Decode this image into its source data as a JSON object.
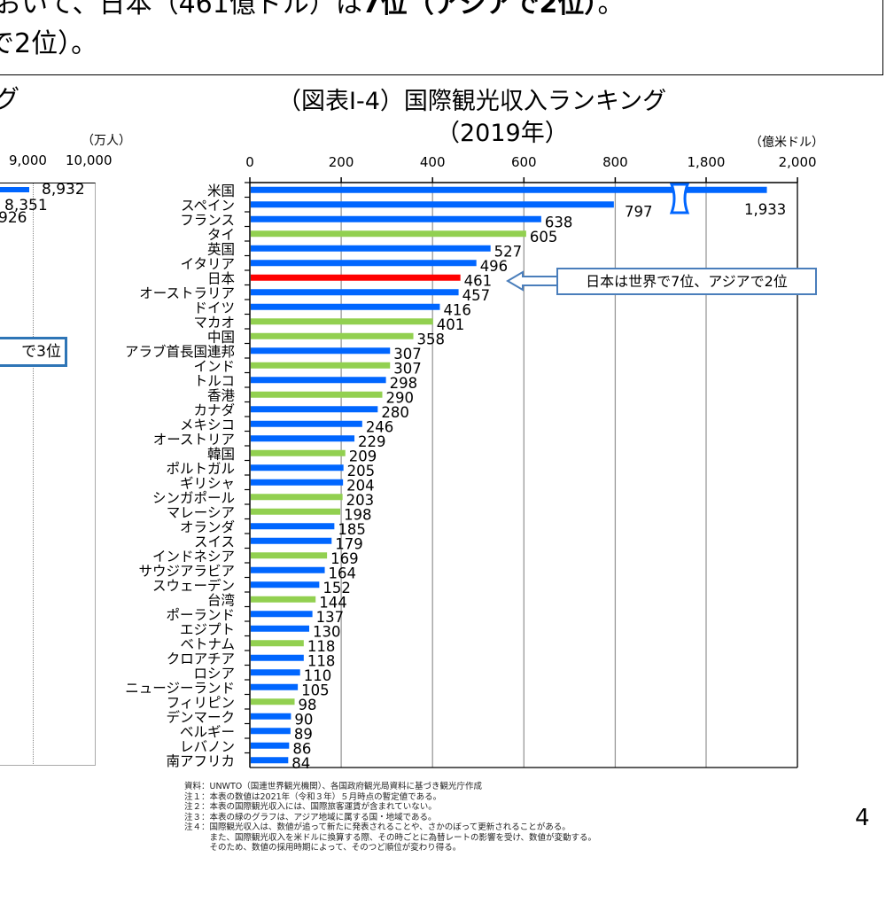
{
  "top_text": {
    "line1_normal": "おいて、日本（461億ドル）は",
    "line1_bold": "7位（アジアで2位）",
    "line1_end": "。",
    "line2": "で2位）。"
  },
  "left_chart_fragment": {
    "title_fragment": "グ",
    "unit": "（万人）",
    "ticks": [
      "9,000",
      "10,000"
    ],
    "labels": [
      "8,932",
      "8,351",
      "926"
    ],
    "callout_fragment": "で3位"
  },
  "chart_data": {
    "type": "bar",
    "orientation": "horizontal",
    "title": "（図表Ⅰ-4）国際観光収入ランキング",
    "subtitle": "（2019年）",
    "unit": "（億米ドル）",
    "xlim": [
      0,
      2000
    ],
    "axis_break": [
      800,
      1800
    ],
    "tick_labels": [
      "0",
      "200",
      "400",
      "600",
      "800",
      "1,800",
      "2,000"
    ],
    "tick_values": [
      0,
      200,
      400,
      600,
      800,
      1800,
      2000
    ],
    "grid": true,
    "colors": {
      "other": "#0066ff",
      "asia": "#92d050",
      "japan": "#ff0000"
    },
    "categories": [
      "米国",
      "スペイン",
      "フランス",
      "タイ",
      "英国",
      "イタリア",
      "日本",
      "オーストラリア",
      "ドイツ",
      "マカオ",
      "中国",
      "アラブ首長国連邦",
      "インド",
      "トルコ",
      "香港",
      "カナダ",
      "メキシコ",
      "オーストリア",
      "韓国",
      "ポルトガル",
      "ギリシャ",
      "シンガポール",
      "マレーシア",
      "オランダ",
      "スイス",
      "インドネシア",
      "サウジアラビア",
      "スウェーデン",
      "台湾",
      "ポーランド",
      "エジプト",
      "ベトナム",
      "クロアチア",
      "ロシア",
      "ニュージーランド",
      "フィリピン",
      "デンマーク",
      "ベルギー",
      "レバノン",
      "南アフリカ"
    ],
    "values": [
      1933,
      797,
      638,
      605,
      527,
      496,
      461,
      457,
      416,
      401,
      358,
      307,
      307,
      298,
      290,
      280,
      246,
      229,
      209,
      205,
      204,
      203,
      198,
      185,
      179,
      169,
      164,
      152,
      144,
      137,
      130,
      118,
      118,
      110,
      105,
      98,
      90,
      89,
      86,
      84
    ],
    "value_labels": [
      "1,933",
      "797",
      "638",
      "605",
      "527",
      "496",
      "461",
      "457",
      "416",
      "401",
      "358",
      "307",
      "307",
      "298",
      "290",
      "280",
      "246",
      "229",
      "209",
      "205",
      "204",
      "203",
      "198",
      "185",
      "179",
      "169",
      "164",
      "152",
      "144",
      "137",
      "130",
      "118",
      "118",
      "110",
      "105",
      "98",
      "90",
      "89",
      "86",
      "84"
    ],
    "group": [
      "other",
      "other",
      "other",
      "asia",
      "other",
      "other",
      "japan",
      "other",
      "other",
      "asia",
      "asia",
      "other",
      "asia",
      "other",
      "asia",
      "other",
      "other",
      "other",
      "asia",
      "other",
      "other",
      "asia",
      "asia",
      "other",
      "other",
      "asia",
      "other",
      "other",
      "asia",
      "other",
      "other",
      "asia",
      "other",
      "other",
      "other",
      "asia",
      "other",
      "other",
      "other",
      "other"
    ],
    "annotation": "日本は世界で7位、アジアで2位"
  },
  "notes": [
    "資料：UNWTO（国連世界観光機関）、各国政府観光局資料に基づき観光庁作成",
    "注１：本表の数値は2021年（令和３年）５月時点の暫定値である。",
    "注２：本表の国際観光収入には、国際旅客運賃が含まれていない。",
    "注３：本表の緑のグラフは、アジア地域に属する国・地域である。",
    "注４：国際観光収入は、数値が追って新たに発表されることや、さかのぼって更新されることがある。",
    "　　　また、国際観光収入を米ドルに換算する際、その時ごとに為替レートの影響を受け、数値が変動する。",
    "　　　そのため、数値の採用時期によって、そのつど順位が変わり得る。"
  ],
  "page_number": "4"
}
